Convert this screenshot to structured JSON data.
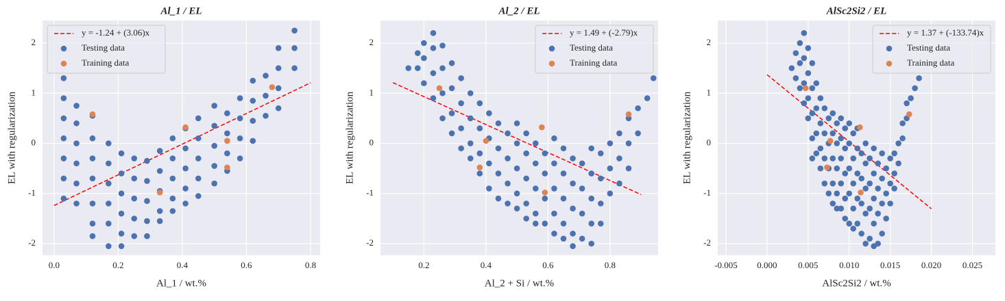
{
  "chart_data": [
    {
      "type": "scatter",
      "title": "Al_1 / EL",
      "xlabel": "Al_1 / wt.%",
      "ylabel": "EL with regularization",
      "xlim": [
        -0.036,
        0.83
      ],
      "ylim": [
        -2.23,
        2.45
      ],
      "xticks": [
        {
          "value": 0,
          "label": "0.0"
        },
        0.2,
        0.4,
        0.6,
        0.8
      ],
      "yticks": [
        -2,
        -1,
        0,
        1,
        2
      ],
      "grid": true,
      "legend": "upper left",
      "series": [
        {
          "name": "y = -1.24 + (3.06)x",
          "color": "#ff0000",
          "marker": "line",
          "x": [
            0,
            0.8
          ],
          "values": [
            -1.24,
            1.208
          ]
        },
        {
          "name": "Testing data",
          "color": "#4c72b0",
          "marker": "o",
          "x": [
            0.03,
            0.03,
            0.03,
            0.03,
            0.03,
            0.03,
            0.03,
            0.07,
            0.07,
            0.07,
            0.07,
            0.07,
            0.07,
            0.12,
            0.12,
            0.12,
            0.12,
            0.12,
            0.12,
            0.12,
            0.17,
            0.17,
            0.17,
            0.17,
            0.17,
            0.17,
            0.21,
            0.21,
            0.21,
            0.21,
            0.21,
            0.21,
            0.25,
            0.25,
            0.25,
            0.25,
            0.25,
            0.29,
            0.29,
            0.29,
            0.29,
            0.29,
            0.33,
            0.33,
            0.33,
            0.33,
            0.33,
            0.37,
            0.37,
            0.37,
            0.37,
            0.37,
            0.41,
            0.41,
            0.41,
            0.41,
            0.41,
            0.45,
            0.45,
            0.45,
            0.45,
            0.45,
            0.5,
            0.5,
            0.5,
            0.5,
            0.5,
            0.54,
            0.54,
            0.54,
            0.54,
            0.58,
            0.58,
            0.58,
            0.58,
            0.62,
            0.62,
            0.62,
            0.62,
            0.66,
            0.66,
            0.66,
            0.7,
            0.7,
            0.7,
            0.7,
            0.75,
            0.75,
            0.75
          ],
          "values": [
            1.3,
            0.9,
            0.5,
            0.1,
            -0.3,
            -0.7,
            -1.1,
            0.75,
            0.4,
            0.0,
            -0.4,
            -0.8,
            -1.2,
            0.55,
            0.1,
            -0.3,
            -0.7,
            -1.2,
            -1.6,
            -1.85,
            0.0,
            -0.4,
            -0.8,
            -1.2,
            -1.6,
            -2.05,
            -0.2,
            -0.6,
            -1.0,
            -1.4,
            -1.8,
            -2.05,
            -0.3,
            -0.7,
            -1.1,
            -1.5,
            -1.85,
            -0.35,
            -0.75,
            -1.15,
            -1.55,
            -1.85,
            -0.15,
            -0.55,
            -0.95,
            -1.35,
            -1.55,
            0.1,
            -0.3,
            -0.7,
            -1.1,
            -1.35,
            0.3,
            -0.1,
            -0.5,
            -0.9,
            -1.2,
            0.5,
            0.1,
            -0.3,
            -0.7,
            -1.05,
            0.75,
            0.35,
            -0.05,
            -0.45,
            -0.8,
            0.6,
            0.2,
            -0.2,
            -0.55,
            0.9,
            0.5,
            0.1,
            -0.3,
            1.25,
            0.85,
            0.45,
            0.05,
            1.35,
            0.95,
            0.55,
            1.9,
            1.5,
            1.1,
            0.7,
            2.25,
            1.9,
            1.5
          ]
        },
        {
          "name": "Training data",
          "color": "#dd8452",
          "marker": "o",
          "x": [
            0.12,
            0.41,
            0.54,
            0.54,
            0.33,
            0.68
          ],
          "values": [
            0.58,
            0.32,
            0.05,
            -0.48,
            -0.98,
            1.12
          ]
        }
      ]
    },
    {
      "type": "scatter",
      "title": "Al_2 / EL",
      "xlabel": "Al_2 + Si / wt.%",
      "ylabel": "EL with regularization",
      "xlim": [
        0.06,
        0.955
      ],
      "ylim": [
        -2.23,
        2.45
      ],
      "xticks": [
        0.2,
        0.4,
        0.6,
        0.8
      ],
      "yticks": [
        -2,
        -1,
        0,
        1,
        2
      ],
      "grid": true,
      "legend": "upper right",
      "series": [
        {
          "name": "y = 1.49 + (-2.79)x",
          "color": "#ff0000",
          "marker": "line",
          "x": [
            0.1,
            0.9
          ],
          "values": [
            1.211,
            -1.021
          ]
        },
        {
          "name": "Testing data",
          "color": "#4c72b0",
          "marker": "o",
          "x": [
            0.15,
            0.18,
            0.18,
            0.2,
            0.2,
            0.2,
            0.23,
            0.23,
            0.23,
            0.23,
            0.26,
            0.26,
            0.26,
            0.26,
            0.29,
            0.29,
            0.29,
            0.29,
            0.32,
            0.32,
            0.32,
            0.32,
            0.35,
            0.35,
            0.35,
            0.35,
            0.38,
            0.38,
            0.38,
            0.38,
            0.41,
            0.41,
            0.41,
            0.41,
            0.44,
            0.44,
            0.44,
            0.44,
            0.47,
            0.47,
            0.47,
            0.47,
            0.5,
            0.5,
            0.5,
            0.5,
            0.5,
            0.53,
            0.53,
            0.53,
            0.53,
            0.53,
            0.56,
            0.56,
            0.56,
            0.56,
            0.56,
            0.59,
            0.59,
            0.59,
            0.59,
            0.62,
            0.62,
            0.62,
            0.62,
            0.62,
            0.65,
            0.65,
            0.65,
            0.65,
            0.65,
            0.68,
            0.68,
            0.68,
            0.68,
            0.68,
            0.71,
            0.71,
            0.71,
            0.71,
            0.74,
            0.74,
            0.74,
            0.74,
            0.74,
            0.77,
            0.77,
            0.77,
            0.77,
            0.8,
            0.8,
            0.8,
            0.83,
            0.83,
            0.83,
            0.86,
            0.86,
            0.86,
            0.89,
            0.89,
            0.92,
            0.94
          ],
          "values": [
            1.5,
            1.8,
            1.5,
            2.0,
            1.7,
            1.2,
            2.2,
            1.9,
            1.4,
            0.9,
            1.95,
            1.5,
            1.0,
            0.5,
            1.6,
            1.1,
            0.6,
            0.2,
            1.3,
            0.8,
            0.3,
            -0.1,
            1.0,
            0.5,
            0.0,
            -0.3,
            0.8,
            0.3,
            -0.2,
            -0.6,
            0.6,
            0.1,
            -0.4,
            -0.9,
            0.4,
            -0.1,
            -0.6,
            -1.1,
            0.2,
            -0.3,
            -0.8,
            -1.2,
            0.4,
            0.0,
            -0.5,
            -1.0,
            -1.3,
            0.2,
            -0.2,
            -0.7,
            -1.2,
            -1.5,
            0.0,
            -0.4,
            -0.9,
            -1.4,
            -1.6,
            -0.2,
            -0.6,
            -1.1,
            -1.6,
            0.1,
            -0.4,
            -0.9,
            -1.4,
            -1.8,
            -0.1,
            -0.6,
            -1.1,
            -1.6,
            -1.9,
            -0.3,
            -0.8,
            -1.3,
            -1.8,
            -2.05,
            -0.4,
            -0.9,
            -1.4,
            -1.9,
            -0.1,
            -0.6,
            -1.1,
            -1.6,
            -2.0,
            -0.2,
            -0.7,
            -1.2,
            -1.6,
            0.0,
            -0.5,
            -1.0,
            0.2,
            -0.3,
            -0.8,
            0.5,
            0.0,
            -0.5,
            0.7,
            0.2,
            0.9,
            1.3
          ]
        },
        {
          "name": "Training data",
          "color": "#dd8452",
          "marker": "o",
          "x": [
            0.25,
            0.58,
            0.4,
            0.38,
            0.59,
            0.86
          ],
          "values": [
            1.1,
            0.32,
            0.05,
            -0.48,
            -0.98,
            0.58
          ]
        }
      ]
    },
    {
      "type": "scatter",
      "title": "AlSc2Si2 / EL",
      "xlabel": "AlSc2Si2 / wt.%",
      "ylabel": "EL with regularization",
      "xlim": [
        -0.006,
        0.0278
      ],
      "ylim": [
        -2.23,
        2.45
      ],
      "xticks": [
        -0.005,
        {
          "value": 0,
          "label": "0.000"
        },
        0.005,
        {
          "value": 0.01,
          "label": "0.010"
        },
        0.015,
        {
          "value": 0.02,
          "label": "0.020"
        },
        0.025
      ],
      "yticks": [
        -2,
        -1,
        0,
        1,
        2
      ],
      "grid": true,
      "legend": "upper right",
      "series": [
        {
          "name": "y = 1.37 + (-133.74)x",
          "color": "#ff0000",
          "marker": "line",
          "x": [
            0,
            0.02
          ],
          "values": [
            1.37,
            -1.3048
          ]
        },
        {
          "name": "Testing data",
          "color": "#4c72b0",
          "marker": "o",
          "x": [
            0.003,
            0.0035,
            0.0035,
            0.004,
            0.004,
            0.004,
            0.0045,
            0.0045,
            0.0045,
            0.0045,
            0.005,
            0.005,
            0.005,
            0.005,
            0.0055,
            0.0055,
            0.0055,
            0.0055,
            0.0055,
            0.006,
            0.006,
            0.006,
            0.006,
            0.0065,
            0.0065,
            0.0065,
            0.0065,
            0.007,
            0.007,
            0.007,
            0.007,
            0.0075,
            0.0075,
            0.0075,
            0.0075,
            0.008,
            0.008,
            0.008,
            0.008,
            0.008,
            0.0085,
            0.0085,
            0.0085,
            0.0085,
            0.0085,
            0.009,
            0.009,
            0.009,
            0.009,
            0.009,
            0.0095,
            0.0095,
            0.0095,
            0.0095,
            0.0095,
            0.01,
            0.01,
            0.01,
            0.01,
            0.01,
            0.0105,
            0.0105,
            0.0105,
            0.0105,
            0.0105,
            0.011,
            0.011,
            0.011,
            0.011,
            0.011,
            0.0115,
            0.0115,
            0.0115,
            0.0115,
            0.012,
            0.012,
            0.012,
            0.012,
            0.012,
            0.0125,
            0.0125,
            0.0125,
            0.0125,
            0.013,
            0.013,
            0.013,
            0.013,
            0.013,
            0.0135,
            0.0135,
            0.0135,
            0.0135,
            0.014,
            0.014,
            0.014,
            0.014,
            0.0145,
            0.0145,
            0.0145,
            0.015,
            0.015,
            0.015,
            0.0155,
            0.0155,
            0.0155,
            0.016,
            0.016,
            0.0165,
            0.0165,
            0.017,
            0.017,
            0.0175,
            0.018,
            0.0185
          ],
          "values": [
            1.5,
            1.8,
            1.3,
            2.0,
            1.6,
            1.1,
            2.2,
            1.7,
            1.2,
            0.8,
            1.9,
            1.4,
            0.9,
            0.5,
            1.6,
            1.1,
            0.6,
            0.1,
            -0.3,
            1.2,
            0.7,
            0.2,
            -0.2,
            0.9,
            0.4,
            -0.1,
            -0.5,
            0.7,
            0.2,
            -0.3,
            -0.8,
            0.5,
            0.0,
            -0.5,
            -1.0,
            0.6,
            0.2,
            -0.3,
            -0.8,
            -1.2,
            0.4,
            0.0,
            -0.5,
            -1.0,
            -1.3,
            0.5,
            0.1,
            -0.3,
            -0.8,
            -1.3,
            0.3,
            -0.1,
            -0.6,
            -1.1,
            -1.5,
            0.4,
            0.0,
            -0.5,
            -1.0,
            -1.6,
            0.2,
            -0.3,
            -0.8,
            -1.3,
            -1.7,
            0.3,
            -0.1,
            -0.6,
            -1.1,
            -1.6,
            -0.2,
            -0.7,
            -1.2,
            -1.8,
            0.0,
            -0.4,
            -0.9,
            -1.4,
            -2.0,
            -0.3,
            -0.8,
            -1.3,
            -1.9,
            -0.1,
            -0.6,
            -1.1,
            -1.6,
            -2.05,
            -0.4,
            -0.9,
            -1.4,
            -2.0,
            -0.2,
            -0.7,
            -1.2,
            -1.8,
            -0.5,
            -1.0,
            -1.5,
            -0.3,
            -0.8,
            -1.2,
            -0.2,
            -0.6,
            -0.9,
            0.0,
            -0.4,
            0.1,
            0.4,
            0.5,
            0.8,
            0.9,
            1.1,
            1.3
          ]
        },
        {
          "name": "Training data",
          "color": "#dd8452",
          "marker": "o",
          "x": [
            0.0047,
            0.0113,
            0.0077,
            0.0073,
            0.0114,
            0.0173
          ],
          "values": [
            1.1,
            0.32,
            0.05,
            -0.48,
            -0.98,
            0.58
          ]
        }
      ]
    }
  ]
}
